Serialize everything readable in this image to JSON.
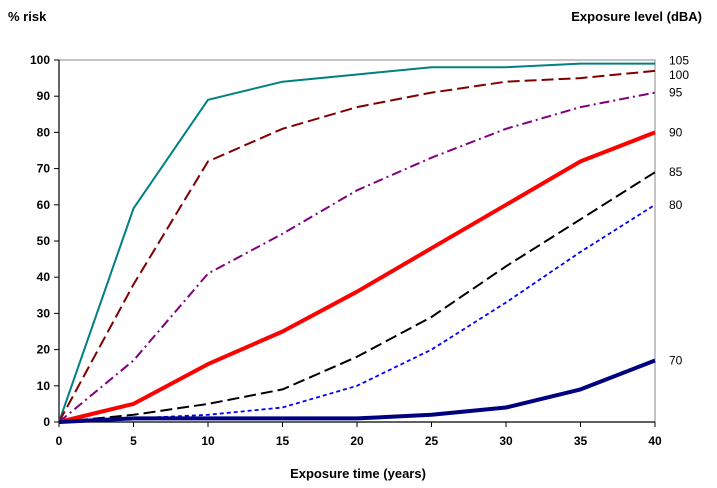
{
  "chart_data": {
    "type": "line",
    "ylabel": "% risk",
    "legend_title": "Exposure level (dBA)",
    "xlabel": "Exposure time (years)",
    "x": [
      0,
      5,
      10,
      15,
      20,
      25,
      30,
      35,
      40
    ],
    "xlim": [
      0,
      40
    ],
    "ylim": [
      0,
      100
    ],
    "x_ticks": [
      "0",
      "5",
      "10",
      "15",
      "20",
      "25",
      "30",
      "35",
      "40"
    ],
    "y_ticks": [
      "0",
      "10",
      "20",
      "30",
      "40",
      "50",
      "60",
      "70",
      "80",
      "90",
      "100"
    ],
    "grid": false,
    "series": [
      {
        "name": "105",
        "color": "#008080",
        "dash": "solid",
        "values": [
          0,
          59,
          89,
          94,
          96,
          98,
          98,
          99,
          99
        ]
      },
      {
        "name": "100",
        "color": "#800000",
        "dash": "long-dash",
        "values": [
          0,
          38,
          72,
          81,
          87,
          91,
          94,
          95,
          97
        ]
      },
      {
        "name": "95",
        "color": "#800080",
        "dash": "dash-dot",
        "values": [
          0,
          17,
          41,
          52,
          64,
          73,
          81,
          87,
          91
        ]
      },
      {
        "name": "90",
        "color": "#ff0000",
        "dash": "solid-thick",
        "values": [
          0,
          5,
          16,
          25,
          36,
          48,
          60,
          72,
          80
        ]
      },
      {
        "name": "85",
        "color": "#000000",
        "dash": "long-dash",
        "values": [
          0,
          2,
          5,
          9,
          18,
          29,
          43,
          56,
          69
        ]
      },
      {
        "name": "80",
        "color": "#0000ff",
        "dash": "short-dash",
        "values": [
          0,
          1,
          2,
          4,
          10,
          20,
          33,
          47,
          60
        ]
      },
      {
        "name": "70",
        "color": "#000080",
        "dash": "solid-thick",
        "values": [
          0,
          1,
          1,
          1,
          1,
          2,
          4,
          9,
          17
        ]
      }
    ]
  }
}
